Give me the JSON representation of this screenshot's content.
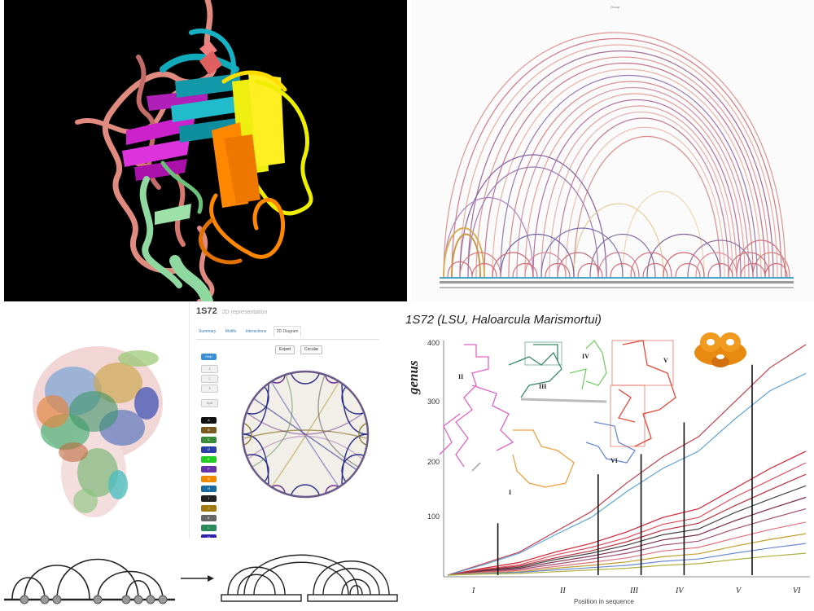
{
  "arc_panel": {
    "header": "Group"
  },
  "rna_ui": {
    "title": "1S72",
    "subtitle": "2D representation",
    "tabs": [
      "Summary",
      "Motifs",
      "Interactions",
      "2D Diagram"
    ],
    "active_tab": "2D Diagram",
    "buttons": [
      "Export",
      "Circular"
    ],
    "side_controls": [
      "Help",
      "1",
      "2",
      "3",
      "Split"
    ],
    "palette": [
      {
        "label": "A",
        "color": "#111111"
      },
      {
        "label": "B",
        "color": "#7a5a1e"
      },
      {
        "label": "C",
        "color": "#3a8a3a"
      },
      {
        "label": "D",
        "color": "#2b3fa8"
      },
      {
        "label": "E",
        "color": "#22cc22"
      },
      {
        "label": "F",
        "color": "#6633aa"
      },
      {
        "label": "G",
        "color": "#f08a00"
      },
      {
        "label": "H",
        "color": "#1a6aa0"
      },
      {
        "label": "I",
        "color": "#222222"
      },
      {
        "label": "J",
        "color": "#a07a10"
      },
      {
        "label": "K",
        "color": "#666666"
      },
      {
        "label": "L",
        "color": "#2a8a5a"
      },
      {
        "label": "M",
        "color": "#3322aa"
      }
    ]
  },
  "genus_panel": {
    "title": "1S72 (LSU, Haloarcula Marismortui)",
    "ylabel": "genus",
    "xlabel": "Position in sequence",
    "yticks": [
      "400",
      "300",
      "200",
      "100"
    ],
    "domains": [
      "I",
      "II",
      "III",
      "IV",
      "V",
      "VI"
    ],
    "inset_labels": [
      "II",
      "III",
      "IV",
      "V",
      "VI",
      "I"
    ]
  },
  "chart_data": {
    "type": "line",
    "title": "1S72 (LSU, Haloarcula Marismortui)",
    "xlabel": "Position in sequence",
    "ylabel": "genus",
    "ylim": [
      0,
      400
    ],
    "x": [
      0,
      10,
      20,
      30,
      40,
      50,
      60,
      70,
      80,
      90,
      100
    ],
    "series": [
      {
        "values": [
          0,
          20,
          40,
          75,
          110,
          160,
          205,
          240,
          300,
          360,
          400
        ],
        "color": "#c04050"
      },
      {
        "values": [
          0,
          18,
          38,
          70,
          100,
          145,
          185,
          215,
          270,
          320,
          350
        ],
        "color": "#5fa3d6"
      },
      {
        "values": [
          0,
          12,
          22,
          40,
          55,
          75,
          100,
          115,
          150,
          185,
          215
        ],
        "color": "#d02030"
      },
      {
        "values": [
          0,
          10,
          18,
          35,
          48,
          65,
          88,
          100,
          135,
          165,
          195
        ],
        "color": "#e05060"
      },
      {
        "values": [
          0,
          9,
          16,
          30,
          42,
          58,
          78,
          90,
          120,
          148,
          175
        ],
        "color": "#b83040"
      },
      {
        "values": [
          0,
          8,
          14,
          27,
          38,
          52,
          70,
          80,
          108,
          132,
          155
        ],
        "color": "#444444"
      },
      {
        "values": [
          0,
          7,
          12,
          23,
          33,
          45,
          61,
          70,
          94,
          115,
          135
        ],
        "color": "#7a2a4a"
      },
      {
        "values": [
          0,
          6,
          10,
          19,
          28,
          38,
          52,
          59,
          80,
          98,
          115
        ],
        "color": "#a05070"
      },
      {
        "values": [
          0,
          5,
          8,
          15,
          22,
          30,
          42,
          48,
          64,
          79,
          92
        ],
        "color": "#e07080"
      },
      {
        "values": [
          0,
          4,
          6,
          12,
          17,
          23,
          32,
          37,
          50,
          62,
          72
        ],
        "color": "#c0a030"
      },
      {
        "values": [
          0,
          3,
          5,
          9,
          13,
          17,
          24,
          28,
          38,
          47,
          55
        ],
        "color": "#6a8ad0"
      },
      {
        "values": [
          0,
          2,
          3,
          6,
          9,
          12,
          17,
          20,
          27,
          33,
          38
        ],
        "color": "#b0b040"
      }
    ],
    "boundaries": [
      {
        "x": 14,
        "y": 90
      },
      {
        "x": 42,
        "y": 175
      },
      {
        "x": 54,
        "y": 210
      },
      {
        "x": 66,
        "y": 265
      },
      {
        "x": 85,
        "y": 365
      }
    ]
  }
}
